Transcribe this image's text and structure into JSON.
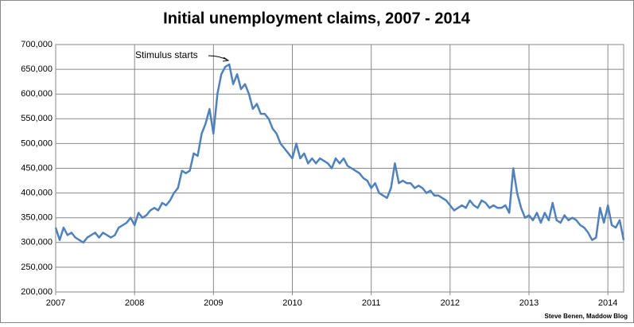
{
  "chart_data": {
    "type": "line",
    "title": "Initial unemployment claims, 2007 - 2014",
    "annotation": "Stimulus starts",
    "credit": "Steve Benen, Maddow Blog",
    "xlim": [
      2007,
      2014.2
    ],
    "xticks": [
      2007,
      2008,
      2009,
      2010,
      2011,
      2012,
      2013,
      2014
    ],
    "ylim": [
      200000,
      700000
    ],
    "yticks": [
      {
        "value": 200000,
        "label": "200,000"
      },
      {
        "value": 250000,
        "label": "250,000"
      },
      {
        "value": 300000,
        "label": "300,000"
      },
      {
        "value": 350000,
        "label": "350,000"
      },
      {
        "value": 400000,
        "label": "400,000"
      },
      {
        "value": 450000,
        "label": "450,000"
      },
      {
        "value": 500000,
        "label": "500,000"
      },
      {
        "value": 550000,
        "label": "550,000"
      },
      {
        "value": 600000,
        "label": "600,000"
      },
      {
        "value": 650000,
        "label": "650,000"
      },
      {
        "value": 700000,
        "label": "700,000"
      }
    ],
    "grid": true,
    "x": [
      2007.0,
      2007.05,
      2007.1,
      2007.15,
      2007.2,
      2007.25,
      2007.3,
      2007.35,
      2007.4,
      2007.45,
      2007.5,
      2007.55,
      2007.6,
      2007.65,
      2007.7,
      2007.75,
      2007.8,
      2007.85,
      2007.9,
      2007.95,
      2008.0,
      2008.05,
      2008.1,
      2008.15,
      2008.2,
      2008.25,
      2008.3,
      2008.35,
      2008.4,
      2008.45,
      2008.5,
      2008.55,
      2008.6,
      2008.65,
      2008.7,
      2008.75,
      2008.8,
      2008.85,
      2008.9,
      2008.95,
      2009.0,
      2009.05,
      2009.1,
      2009.15,
      2009.2,
      2009.25,
      2009.3,
      2009.35,
      2009.4,
      2009.45,
      2009.5,
      2009.55,
      2009.6,
      2009.65,
      2009.7,
      2009.75,
      2009.8,
      2009.85,
      2009.9,
      2009.95,
      2010.0,
      2010.05,
      2010.1,
      2010.15,
      2010.2,
      2010.25,
      2010.3,
      2010.35,
      2010.4,
      2010.45,
      2010.5,
      2010.55,
      2010.6,
      2010.65,
      2010.7,
      2010.75,
      2010.8,
      2010.85,
      2010.9,
      2010.95,
      2011.0,
      2011.05,
      2011.1,
      2011.15,
      2011.2,
      2011.25,
      2011.3,
      2011.35,
      2011.4,
      2011.45,
      2011.5,
      2011.55,
      2011.6,
      2011.65,
      2011.7,
      2011.75,
      2011.8,
      2011.85,
      2011.9,
      2011.95,
      2012.0,
      2012.05,
      2012.1,
      2012.15,
      2012.2,
      2012.25,
      2012.3,
      2012.35,
      2012.4,
      2012.45,
      2012.5,
      2012.55,
      2012.6,
      2012.65,
      2012.7,
      2012.75,
      2012.8,
      2012.85,
      2012.9,
      2012.95,
      2013.0,
      2013.05,
      2013.1,
      2013.15,
      2013.2,
      2013.25,
      2013.3,
      2013.35,
      2013.4,
      2013.45,
      2013.5,
      2013.55,
      2013.6,
      2013.65,
      2013.7,
      2013.75,
      2013.8,
      2013.85,
      2013.9,
      2013.95,
      2014.0,
      2014.05,
      2014.1,
      2014.15,
      2014.2
    ],
    "series": [
      {
        "color": "#4f81bd",
        "values": [
          330000,
          305000,
          330000,
          315000,
          320000,
          310000,
          305000,
          300000,
          310000,
          315000,
          320000,
          310000,
          320000,
          315000,
          310000,
          315000,
          330000,
          335000,
          340000,
          350000,
          335000,
          360000,
          350000,
          355000,
          365000,
          370000,
          365000,
          380000,
          375000,
          385000,
          400000,
          410000,
          445000,
          440000,
          445000,
          480000,
          475000,
          520000,
          540000,
          570000,
          520000,
          600000,
          640000,
          655000,
          660000,
          620000,
          640000,
          610000,
          620000,
          600000,
          570000,
          580000,
          560000,
          560000,
          550000,
          530000,
          520000,
          500000,
          490000,
          480000,
          470000,
          500000,
          470000,
          480000,
          460000,
          470000,
          460000,
          470000,
          465000,
          460000,
          450000,
          470000,
          460000,
          470000,
          455000,
          450000,
          445000,
          440000,
          430000,
          425000,
          410000,
          420000,
          400000,
          395000,
          390000,
          410000,
          460000,
          420000,
          425000,
          420000,
          420000,
          410000,
          415000,
          410000,
          400000,
          405000,
          395000,
          395000,
          390000,
          385000,
          375000,
          365000,
          370000,
          375000,
          370000,
          385000,
          375000,
          370000,
          385000,
          380000,
          370000,
          375000,
          370000,
          370000,
          375000,
          360000,
          450000,
          400000,
          370000,
          350000,
          355000,
          345000,
          360000,
          340000,
          360000,
          345000,
          380000,
          345000,
          340000,
          355000,
          345000,
          350000,
          345000,
          335000,
          330000,
          320000,
          305000,
          310000,
          370000,
          340000,
          375000,
          335000,
          330000,
          345000,
          305000
        ]
      }
    ]
  }
}
